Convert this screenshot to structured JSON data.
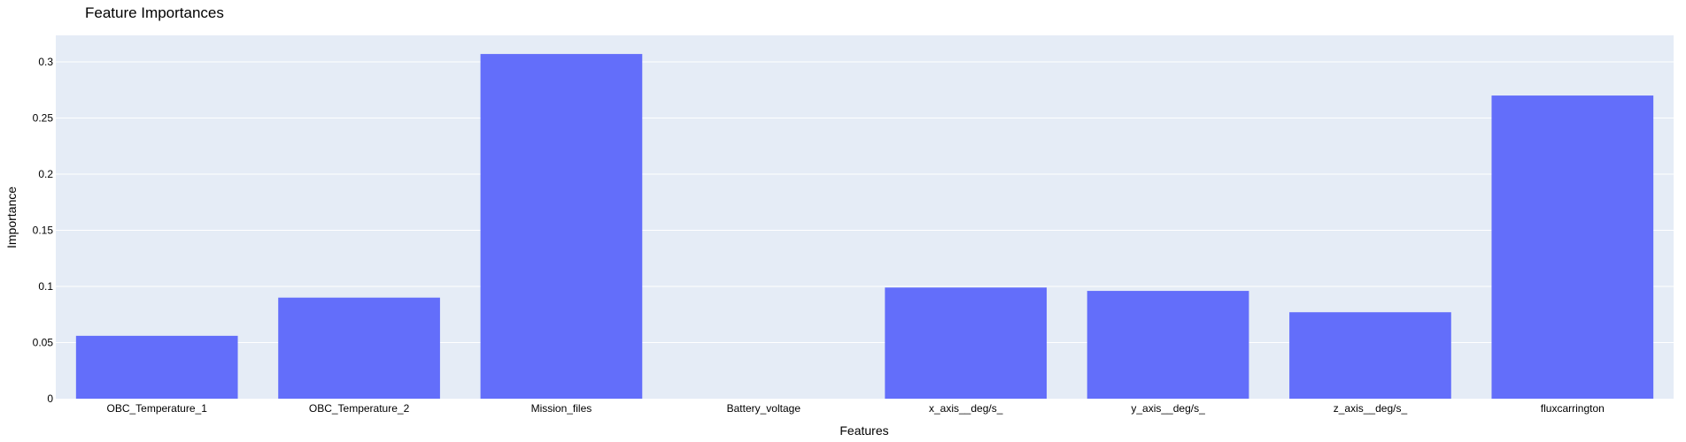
{
  "chart_data": {
    "type": "bar",
    "title": "Feature Importances",
    "xlabel": "Features",
    "ylabel": "Importance",
    "categories": [
      "OBC_Temperature_1",
      "OBC_Temperature_2",
      "Mission_files",
      "Battery_voltage",
      "x_axis__deg/s_",
      "y_axis__deg/s_",
      "z_axis__deg/s_",
      "fluxcarrington"
    ],
    "values": [
      0.056,
      0.09,
      0.307,
      0.0,
      0.099,
      0.096,
      0.077,
      0.27
    ],
    "ylim": [
      0,
      0.3236
    ],
    "yticks": [
      0,
      0.05,
      0.1,
      0.15,
      0.2,
      0.25,
      0.3
    ],
    "ytick_labels": [
      "0",
      "0.05",
      "0.1",
      "0.15",
      "0.2",
      "0.25",
      "0.3"
    ],
    "grid": true,
    "colors": {
      "bar": "#636efa",
      "plot_bg": "#e5ecf6",
      "grid": "#ffffff",
      "text": "#2a3f5f"
    }
  }
}
